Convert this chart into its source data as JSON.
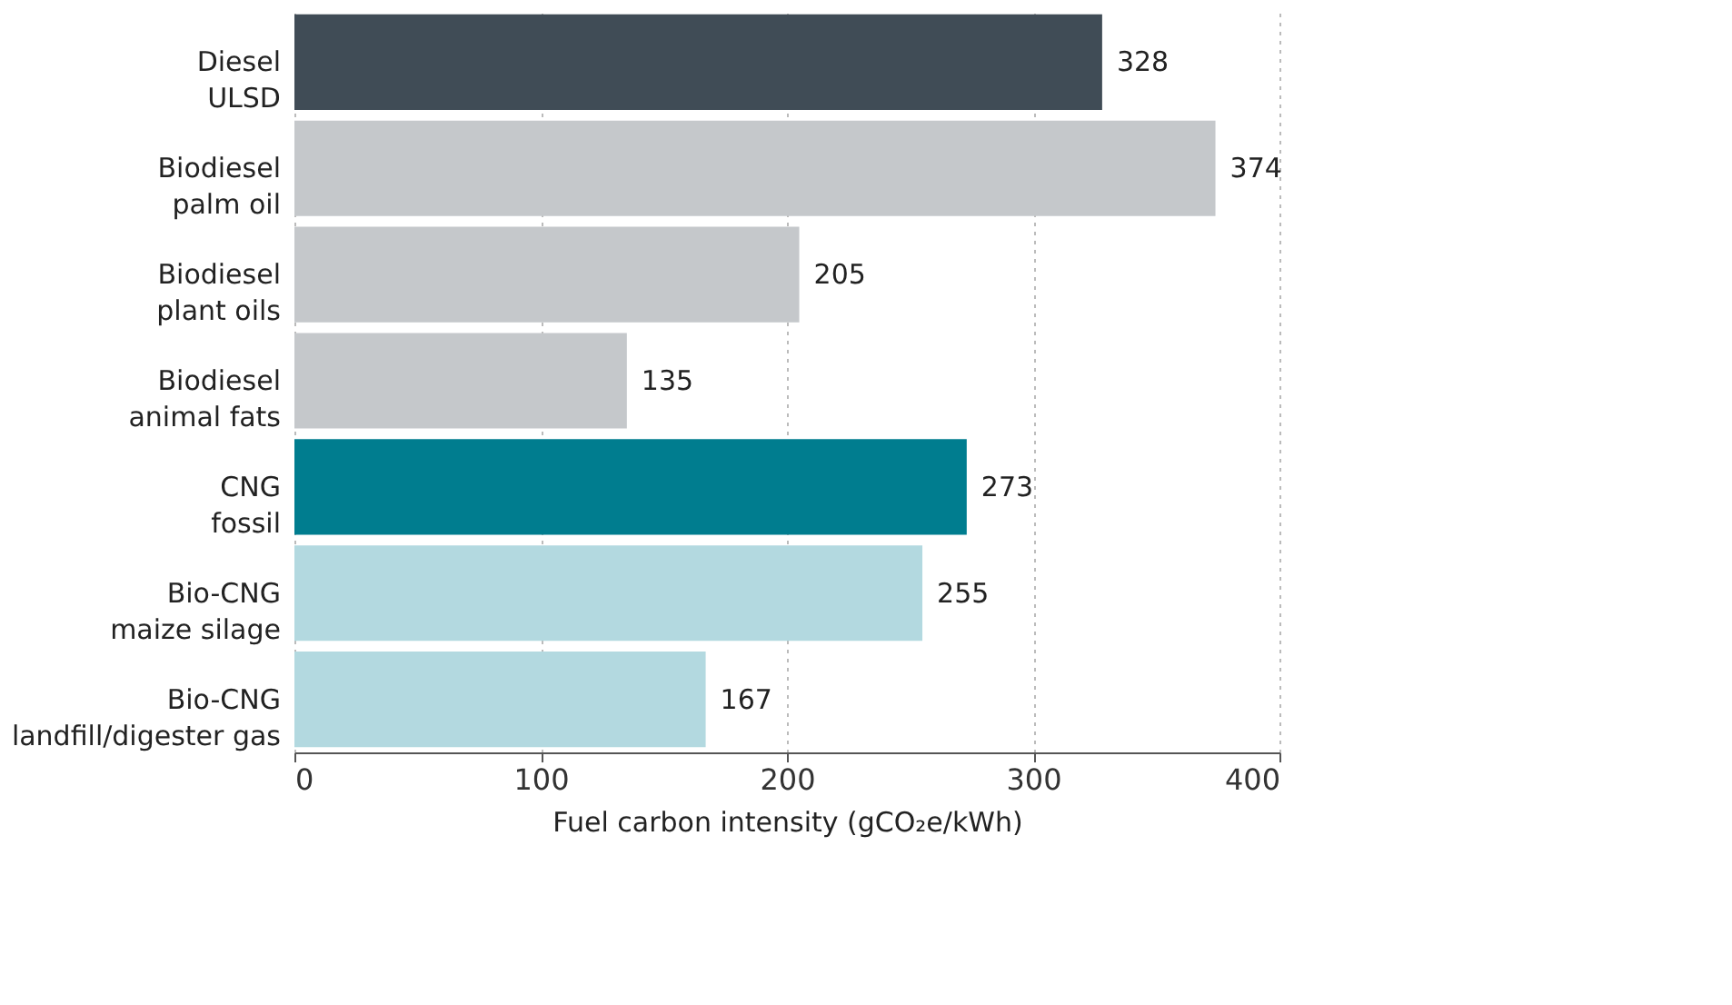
{
  "chart_data": {
    "type": "bar",
    "orientation": "horizontal",
    "xlabel": "Fuel carbon intensity (gCO₂e/kWh)",
    "categories": [
      "Diesel\nULSD",
      "Biodiesel\npalm oil",
      "Biodiesel\nplant oils",
      "Biodiesel\nanimal fats",
      "CNG\nfossil",
      "Bio-CNG\nmaize silage",
      "Bio-CNG\nlandfill/digester gas"
    ],
    "values": [
      328,
      374,
      205,
      135,
      273,
      255,
      167
    ],
    "colors": [
      "#404c56",
      "#c5c8cb",
      "#c5c8cb",
      "#c5c8cb",
      "#007d8f",
      "#b3d9e0",
      "#b3d9e0"
    ],
    "xlim": [
      0,
      400
    ],
    "xticks": [
      0,
      100,
      200,
      300,
      400
    ],
    "grid": "x",
    "data_labels": true
  }
}
